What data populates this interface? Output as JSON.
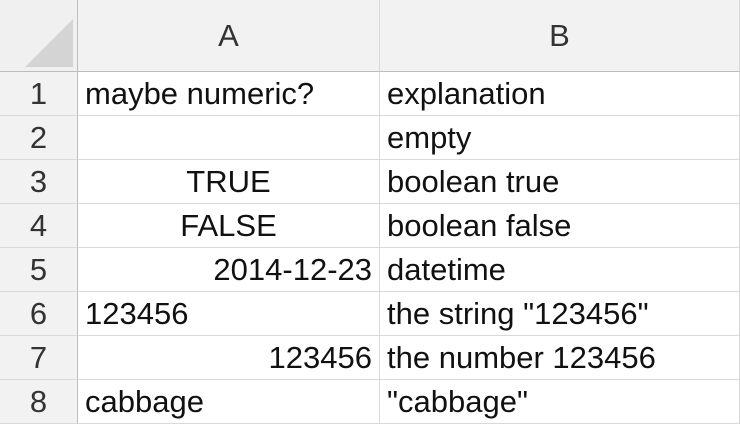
{
  "columns": [
    "A",
    "B"
  ],
  "rows": [
    {
      "num": "1",
      "a": "maybe numeric?",
      "a_align": "left",
      "b": "explanation"
    },
    {
      "num": "2",
      "a": "",
      "a_align": "left",
      "b": "empty"
    },
    {
      "num": "3",
      "a": "TRUE",
      "a_align": "center",
      "b": "boolean true"
    },
    {
      "num": "4",
      "a": "FALSE",
      "a_align": "center",
      "b": "boolean false"
    },
    {
      "num": "5",
      "a": "2014-12-23",
      "a_align": "right",
      "b": "datetime"
    },
    {
      "num": "6",
      "a": "123456",
      "a_align": "left",
      "b": "the string \"123456\""
    },
    {
      "num": "7",
      "a": "123456",
      "a_align": "right",
      "b": "the number 123456"
    },
    {
      "num": "8",
      "a": "cabbage",
      "a_align": "left",
      "b": "\"cabbage\""
    }
  ]
}
